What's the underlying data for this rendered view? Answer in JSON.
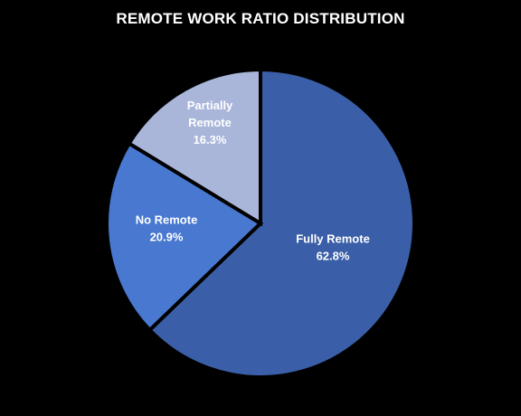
{
  "chart_data": {
    "type": "pie",
    "title": "REMOTE WORK RATIO DISTRIBUTION",
    "slices": [
      {
        "name": "Fully Remote",
        "label_lines": [
          "Fully Remote"
        ],
        "value": 62.8,
        "value_label": "62.8%",
        "color": "#3a5fa8"
      },
      {
        "name": "No Remote",
        "label_lines": [
          "No Remote"
        ],
        "value": 20.9,
        "value_label": "20.9%",
        "color": "#4878cf"
      },
      {
        "name": "Partially Remote",
        "label_lines": [
          "Partially",
          "Remote"
        ],
        "value": 16.3,
        "value_label": "16.3%",
        "color": "#a9b6da"
      }
    ],
    "start_angle_deg": 0,
    "direction": "clockwise",
    "legend": "none",
    "background": "#000000",
    "border_color": "#000000"
  }
}
